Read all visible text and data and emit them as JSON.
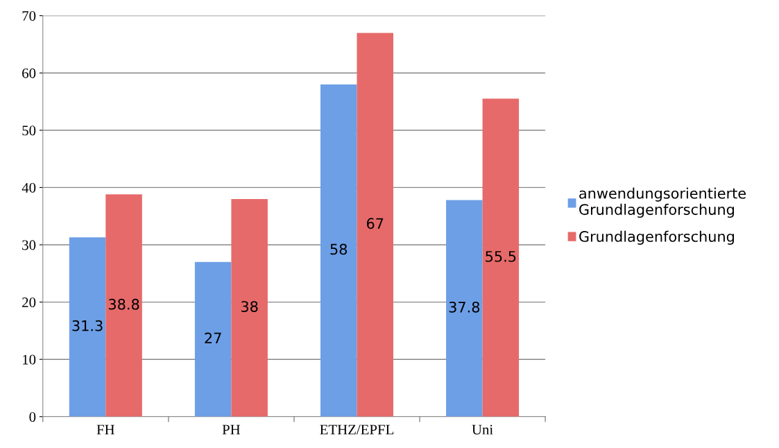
{
  "chart_data": {
    "type": "bar",
    "categories": [
      "FH",
      "PH",
      "ETHZ/EPFL",
      "Uni"
    ],
    "series": [
      {
        "name": "anwendungsorientierte\nGrundlagenforschung",
        "color": "#6d9fe6",
        "values": [
          31.3,
          27,
          58,
          37.8
        ]
      },
      {
        "name": "Grundlagenforschung",
        "color": "#e66a6a",
        "values": [
          38.8,
          38,
          67,
          55.5
        ]
      }
    ],
    "ylim": [
      0,
      70
    ],
    "yticks": [
      0,
      10,
      20,
      30,
      40,
      50,
      60,
      70
    ],
    "grid": "y",
    "legend": "right",
    "data_labels": true
  }
}
